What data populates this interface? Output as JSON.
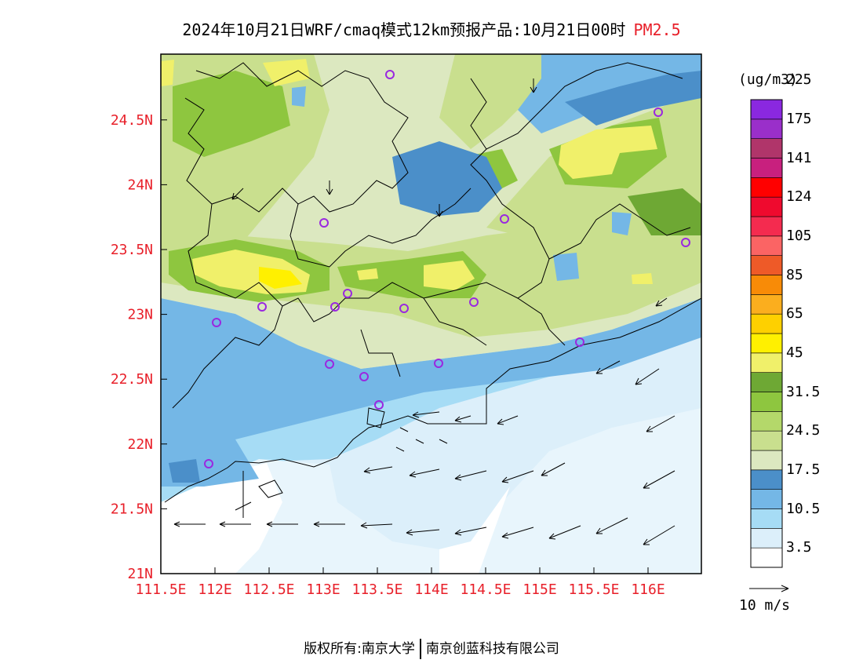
{
  "title": {
    "main": "2024年10月21日WRF/cmaq模式12km预报产品:10月21日00时",
    "variable": "PM2.5"
  },
  "colorbar": {
    "unit": "(ug/m3)",
    "colors": [
      "#ffffff",
      "#dceffa",
      "#a6dcf5",
      "#74b7e6",
      "#4b8fc9",
      "#dce8c0",
      "#c9df8e",
      "#b4d86a",
      "#8ec63f",
      "#6ea834",
      "#f0f06a",
      "#fff000",
      "#fed000",
      "#fbae1e",
      "#f88b07",
      "#ee5a28",
      "#fb6464",
      "#f42b4f",
      "#ef0a2e",
      "#ff0000",
      "#c8207e",
      "#b0356a",
      "#9a2fca",
      "#8a28e0"
    ],
    "labels": [
      "3.5",
      "10.5",
      "17.5",
      "24.5",
      "31.5",
      "45",
      "65",
      "85",
      "105",
      "124",
      "141",
      "175",
      "225"
    ]
  },
  "axes": {
    "x_ticks": [
      "111.5E",
      "112E",
      "112.5E",
      "113E",
      "113.5E",
      "114E",
      "114.5E",
      "115E",
      "115.5E",
      "116E"
    ],
    "y_ticks": [
      "21N",
      "21.5N",
      "22N",
      "22.5N",
      "23N",
      "23.5N",
      "24N",
      "24.5N"
    ]
  },
  "wind_reference": {
    "label": "10 m/s"
  },
  "footer": {
    "left": "版权所有:南京大学",
    "right": "南京创蓝科技有限公司"
  }
}
